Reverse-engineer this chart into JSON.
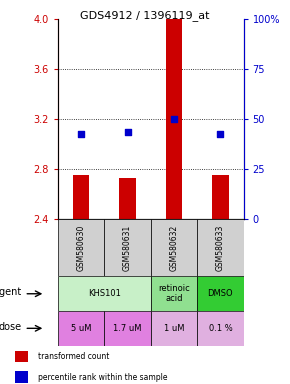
{
  "title": "GDS4912 / 1396119_at",
  "samples": [
    "GSM580630",
    "GSM580631",
    "GSM580632",
    "GSM580633"
  ],
  "bar_values": [
    2.75,
    2.73,
    4.0,
    2.75
  ],
  "bar_bottom": 2.4,
  "dot_values": [
    3.08,
    3.1,
    3.2,
    3.08
  ],
  "ylim": [
    2.4,
    4.0
  ],
  "yticks_left": [
    2.4,
    2.8,
    3.2,
    3.6,
    4.0
  ],
  "yticks_right": [
    0,
    25,
    50,
    75,
    100
  ],
  "bar_color": "#cc0000",
  "dot_color": "#0000cc",
  "agent_row": [
    {
      "label": "KHS101",
      "span": [
        0,
        2
      ],
      "color": "#c8f0c8"
    },
    {
      "label": "retinoic\nacid",
      "span": [
        2,
        3
      ],
      "color": "#90e090"
    },
    {
      "label": "DMSO",
      "span": [
        3,
        4
      ],
      "color": "#33cc33"
    }
  ],
  "dose_row": [
    {
      "label": "5 uM",
      "span": [
        0,
        1
      ],
      "color": "#e080e0"
    },
    {
      "label": "1.7 uM",
      "span": [
        1,
        2
      ],
      "color": "#e080e0"
    },
    {
      "label": "1 uM",
      "span": [
        2,
        3
      ],
      "color": "#e0b0e0"
    },
    {
      "label": "0.1 %",
      "span": [
        3,
        4
      ],
      "color": "#e0b0e0"
    }
  ],
  "sample_box_color": "#d0d0d0",
  "legend_items": [
    {
      "color": "#cc0000",
      "label": "transformed count"
    },
    {
      "color": "#0000cc",
      "label": "percentile rank within the sample"
    }
  ],
  "grid_lines": [
    2.8,
    3.2,
    3.6
  ]
}
